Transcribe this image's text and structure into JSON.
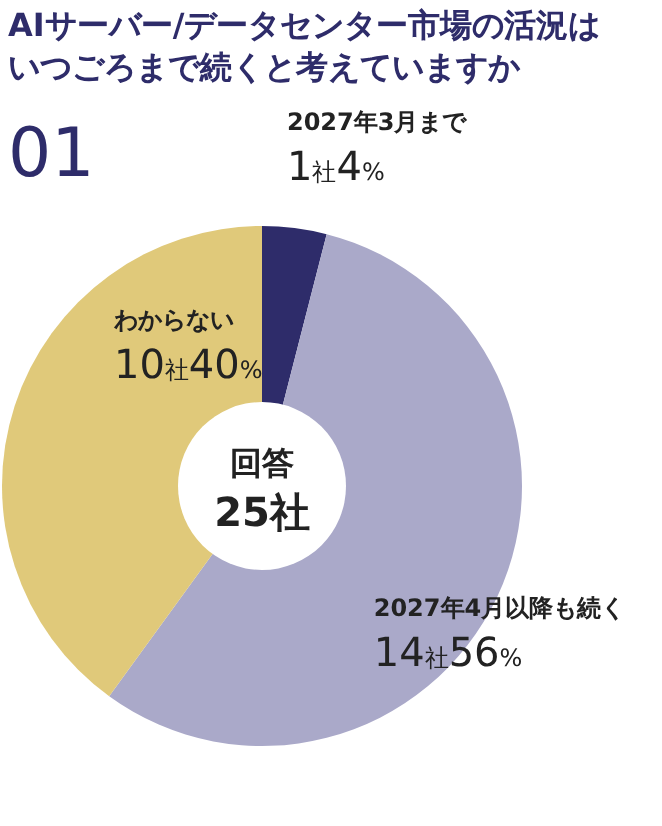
{
  "chart_data": {
    "type": "donut",
    "title": "AIサーバー/データセンター市場の活況はいつごろまで続くと考えていますか",
    "subtitle": "01",
    "categories": [
      "2027年3月まで",
      "2027年4月以降も続く",
      "わからない"
    ],
    "values": [
      4,
      56,
      40
    ],
    "colors": [
      "#2e2c6a",
      "#aaa9c9",
      "#e0c97a"
    ],
    "value_labels": [
      "1社4%",
      "14社56%",
      "10社40%"
    ],
    "annotations": [
      "回答",
      "25社"
    ]
  }
}
